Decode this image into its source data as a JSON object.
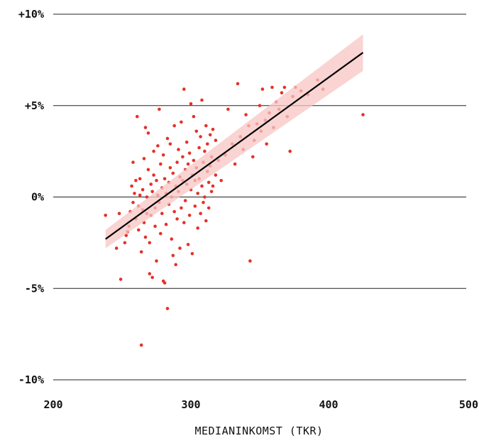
{
  "chart_data": {
    "type": "scatter",
    "title": "",
    "xlabel": "MEDIANINKOMST (TKR)",
    "ylabel": "",
    "xlim": [
      200,
      500
    ],
    "ylim": [
      -10,
      10
    ],
    "x_ticks": [
      {
        "value": 200,
        "label": "200"
      },
      {
        "value": 300,
        "label": "300"
      },
      {
        "value": 400,
        "label": "400"
      },
      {
        "value": 500,
        "label": "500"
      }
    ],
    "y_ticks": [
      {
        "value": 10,
        "label": "+10%"
      },
      {
        "value": 5,
        "label": "+5%"
      },
      {
        "value": 0,
        "label": "0%"
      },
      {
        "value": -5,
        "label": "-5%"
      },
      {
        "value": -10,
        "label": "-10%"
      }
    ],
    "grid": "horizontal",
    "colors": {
      "points": "#e53128",
      "trend": "#000000",
      "band": "#f7c6c3"
    },
    "trend": {
      "x": [
        238,
        425
      ],
      "y": [
        -2.3,
        7.9
      ]
    },
    "band": {
      "x": [
        238,
        425
      ],
      "lower": [
        -2.8,
        6.9
      ],
      "upper": [
        -1.8,
        8.9
      ]
    },
    "points": [
      [
        238,
        -1.0
      ],
      [
        246,
        -2.8
      ],
      [
        248,
        -0.9
      ],
      [
        249,
        -4.5
      ],
      [
        252,
        -2.5
      ],
      [
        253,
        -2.1
      ],
      [
        254,
        -1.9
      ],
      [
        255,
        -1.6
      ],
      [
        256,
        -0.8
      ],
      [
        257,
        0.6
      ],
      [
        258,
        -0.3
      ],
      [
        258,
        1.9
      ],
      [
        259,
        0.2
      ],
      [
        260,
        -1.2
      ],
      [
        260,
        0.9
      ],
      [
        261,
        4.4
      ],
      [
        262,
        -0.5
      ],
      [
        262,
        -1.8
      ],
      [
        263,
        0.1
      ],
      [
        263,
        1.0
      ],
      [
        264,
        -3.0
      ],
      [
        264,
        -8.1
      ],
      [
        265,
        -0.7
      ],
      [
        265,
        0.4
      ],
      [
        266,
        -1.4
      ],
      [
        266,
        2.1
      ],
      [
        267,
        3.8
      ],
      [
        267,
        -2.2
      ],
      [
        268,
        0.0
      ],
      [
        268,
        -0.9
      ],
      [
        269,
        1.5
      ],
      [
        269,
        3.5
      ],
      [
        270,
        -4.2
      ],
      [
        270,
        -2.5
      ],
      [
        271,
        0.7
      ],
      [
        271,
        -1.0
      ],
      [
        272,
        -4.4
      ],
      [
        272,
        0.3
      ],
      [
        273,
        1.2
      ],
      [
        273,
        2.5
      ],
      [
        274,
        -0.6
      ],
      [
        274,
        -1.6
      ],
      [
        275,
        0.9
      ],
      [
        275,
        -3.5
      ],
      [
        276,
        2.8
      ],
      [
        276,
        0.1
      ],
      [
        277,
        -0.3
      ],
      [
        277,
        4.8
      ],
      [
        278,
        1.8
      ],
      [
        278,
        -2.0
      ],
      [
        279,
        0.5
      ],
      [
        279,
        -0.9
      ],
      [
        280,
        2.3
      ],
      [
        280,
        -4.6
      ],
      [
        281,
        -4.7
      ],
      [
        281,
        1.0
      ],
      [
        282,
        0.2
      ],
      [
        282,
        -1.5
      ],
      [
        283,
        3.2
      ],
      [
        283,
        -6.1
      ],
      [
        284,
        0.8
      ],
      [
        284,
        -0.4
      ],
      [
        285,
        1.6
      ],
      [
        285,
        2.9
      ],
      [
        286,
        -2.3
      ],
      [
        286,
        0.0
      ],
      [
        287,
        -3.2
      ],
      [
        287,
        1.3
      ],
      [
        288,
        3.9
      ],
      [
        288,
        -0.8
      ],
      [
        289,
        0.6
      ],
      [
        289,
        -3.7
      ],
      [
        290,
        1.9
      ],
      [
        290,
        -1.2
      ],
      [
        291,
        2.6
      ],
      [
        291,
        0.3
      ],
      [
        292,
        -2.8
      ],
      [
        292,
        1.1
      ],
      [
        293,
        4.1
      ],
      [
        293,
        -0.6
      ],
      [
        294,
        0.9
      ],
      [
        294,
        2.2
      ],
      [
        295,
        -1.4
      ],
      [
        295,
        5.9
      ],
      [
        296,
        1.5
      ],
      [
        296,
        -0.2
      ],
      [
        297,
        3.0
      ],
      [
        297,
        0.7
      ],
      [
        298,
        -2.6
      ],
      [
        298,
        1.8
      ],
      [
        299,
        2.4
      ],
      [
        299,
        -1.0
      ],
      [
        300,
        5.1
      ],
      [
        300,
        0.4
      ],
      [
        301,
        -3.1
      ],
      [
        301,
        1.2
      ],
      [
        302,
        2.0
      ],
      [
        302,
        4.4
      ],
      [
        303,
        -0.5
      ],
      [
        303,
        0.9
      ],
      [
        304,
        1.6
      ],
      [
        304,
        3.6
      ],
      [
        305,
        -1.7
      ],
      [
        305,
        0.2
      ],
      [
        306,
        2.7
      ],
      [
        306,
        1.0
      ],
      [
        307,
        -0.9
      ],
      [
        307,
        3.3
      ],
      [
        308,
        0.6
      ],
      [
        308,
        5.3
      ],
      [
        309,
        1.9
      ],
      [
        309,
        -0.3
      ],
      [
        310,
        2.5
      ],
      [
        310,
        0.0
      ],
      [
        311,
        3.9
      ],
      [
        311,
        -1.3
      ],
      [
        312,
        1.4
      ],
      [
        312,
        2.9
      ],
      [
        313,
        0.8
      ],
      [
        313,
        -0.6
      ],
      [
        314,
        3.4
      ],
      [
        314,
        1.7
      ],
      [
        315,
        0.3
      ],
      [
        315,
        2.2
      ],
      [
        316,
        3.7
      ],
      [
        316,
        0.6
      ],
      [
        318,
        1.2
      ],
      [
        318,
        3.1
      ],
      [
        320,
        2.0
      ],
      [
        322,
        0.9
      ],
      [
        325,
        2.3
      ],
      [
        327,
        4.8
      ],
      [
        330,
        2.9
      ],
      [
        332,
        1.8
      ],
      [
        334,
        6.2
      ],
      [
        336,
        3.3
      ],
      [
        338,
        2.6
      ],
      [
        340,
        4.5
      ],
      [
        342,
        3.9
      ],
      [
        343,
        -3.5
      ],
      [
        345,
        2.2
      ],
      [
        346,
        3.1
      ],
      [
        348,
        4.0
      ],
      [
        350,
        5.0
      ],
      [
        351,
        3.6
      ],
      [
        352,
        5.9
      ],
      [
        354,
        4.2
      ],
      [
        355,
        2.9
      ],
      [
        357,
        4.6
      ],
      [
        359,
        6.0
      ],
      [
        360,
        3.8
      ],
      [
        362,
        5.2
      ],
      [
        364,
        4.8
      ],
      [
        366,
        5.7
      ],
      [
        368,
        6.0
      ],
      [
        370,
        4.4
      ],
      [
        372,
        2.5
      ],
      [
        374,
        5.5
      ],
      [
        376,
        6.0
      ],
      [
        380,
        5.8
      ],
      [
        385,
        5.6
      ],
      [
        392,
        6.4
      ],
      [
        396,
        5.9
      ],
      [
        425,
        4.5
      ]
    ]
  }
}
